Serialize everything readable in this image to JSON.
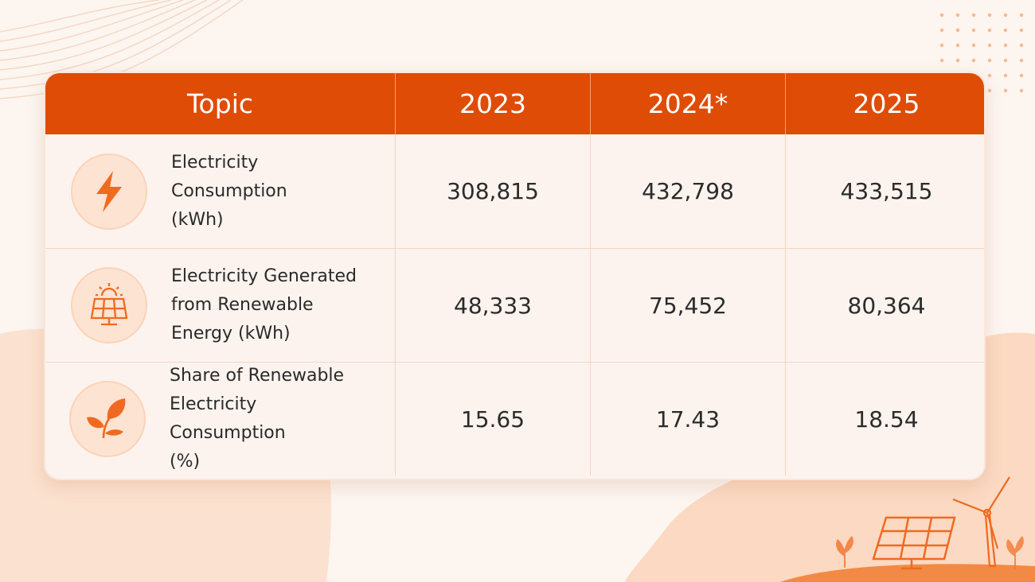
{
  "table": {
    "headers": [
      "Topic",
      "2023",
      "2024*",
      "2025"
    ],
    "rows": [
      {
        "icon": "lightning-icon",
        "topic_lines": [
          "Electricity Consumption",
          "(kWh)"
        ],
        "values": [
          "308,815",
          "432,798",
          "433,515"
        ]
      },
      {
        "icon": "solar-panel-icon",
        "topic_lines": [
          "Electricity Generated",
          "from Renewable",
          "Energy (kWh)"
        ],
        "values": [
          "48,333",
          "75,452",
          "80,364"
        ]
      },
      {
        "icon": "leaf-icon",
        "topic_lines": [
          "Share of Renewable",
          "Electricity Consumption",
          "(%)"
        ],
        "values": [
          "15.65",
          "17.43",
          "18.54"
        ]
      }
    ]
  },
  "colors": {
    "accent": "#df4c05",
    "background": "#fcf5f0",
    "icon_bg": "#fde3d2"
  }
}
